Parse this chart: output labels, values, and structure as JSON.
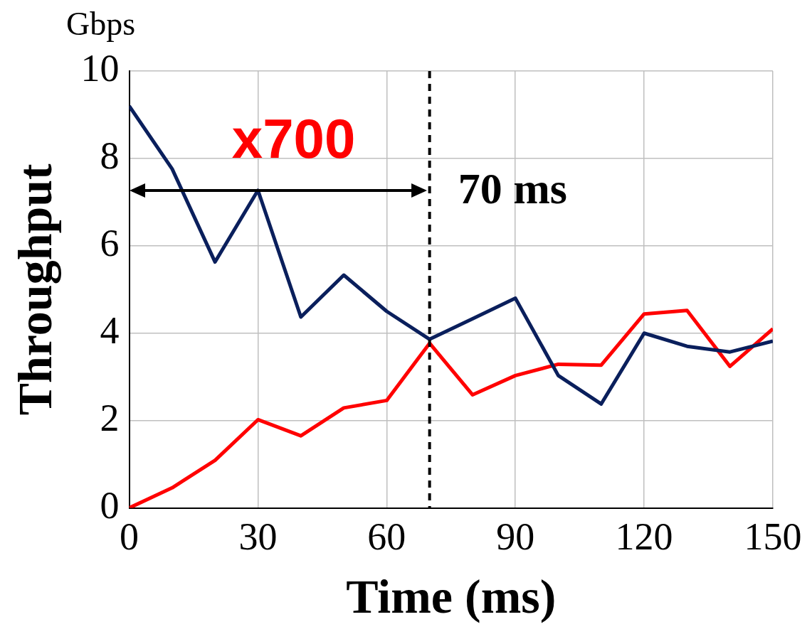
{
  "chart_data": {
    "type": "line",
    "xlabel": "Time (ms)",
    "ylabel": "Throughput",
    "annotations": [
      "Gbps",
      "x700"
    ],
    "xlim": [
      0,
      150
    ],
    "xticks": [
      0,
      30,
      60,
      90,
      120,
      150
    ],
    "ylim": [
      0,
      10
    ],
    "yticks": [
      0,
      2,
      4,
      6,
      8,
      10
    ],
    "grid": true,
    "legend": false,
    "marker": "none",
    "line_style": "solid",
    "ref_lines": [
      {
        "axis": "x",
        "value": 70,
        "label": "70 ms",
        "color": "#000000",
        "line_style": "dashed"
      }
    ],
    "series": [
      {
        "color": "#0a1f5c",
        "x": [
          0,
          10,
          20,
          30,
          40,
          50,
          60,
          70,
          80,
          90,
          100,
          110,
          120,
          130,
          140,
          150
        ],
        "values": [
          9.2,
          7.76,
          5.63,
          7.27,
          4.37,
          5.33,
          4.5,
          3.86,
          4.33,
          4.8,
          3.03,
          2.38,
          4.0,
          3.7,
          3.57,
          3.82
        ]
      },
      {
        "color": "#ff0000",
        "x": [
          0,
          10,
          20,
          30,
          40,
          50,
          60,
          70,
          80,
          90,
          100,
          110,
          120,
          130,
          140,
          150
        ],
        "values": [
          0,
          0.46,
          1.09,
          2.02,
          1.65,
          2.29,
          2.46,
          3.77,
          2.59,
          3.03,
          3.29,
          3.27,
          4.44,
          4.52,
          3.24,
          4.1
        ]
      }
    ]
  }
}
